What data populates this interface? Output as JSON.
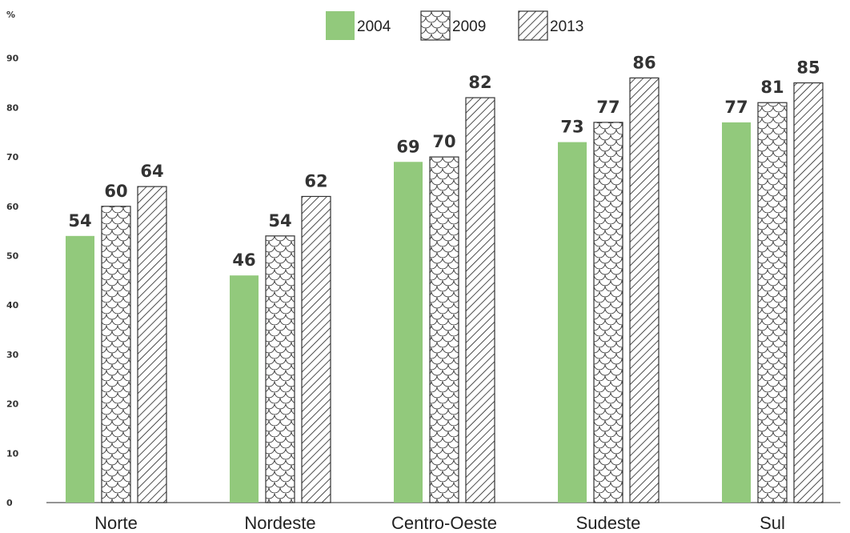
{
  "chart_data": {
    "type": "bar",
    "ylabel": "%",
    "ylim": [
      0,
      100
    ],
    "yticks": [
      0,
      10,
      20,
      30,
      40,
      50,
      60,
      70,
      80,
      90
    ],
    "grid": false,
    "legend_position": "top-center",
    "categories": [
      "Norte",
      "Nordeste",
      "Centro-Oeste",
      "Sudeste",
      "Sul"
    ],
    "series": [
      {
        "name": "2004",
        "fill": "solid",
        "color": "#92c97c",
        "values": [
          54,
          46,
          69,
          73,
          77
        ]
      },
      {
        "name": "2009",
        "fill": "scale-pattern",
        "color": "#ffffff",
        "values": [
          60,
          54,
          70,
          77,
          81
        ]
      },
      {
        "name": "2013",
        "fill": "diagonal-hatch",
        "color": "#ffffff",
        "values": [
          64,
          62,
          82,
          86,
          85
        ]
      }
    ],
    "data_labels": [
      [
        "54",
        "46",
        "69",
        "73",
        "77"
      ],
      [
        "60",
        "54",
        "70",
        "77",
        "81"
      ],
      [
        "64",
        "62",
        "82",
        "86",
        "85"
      ]
    ]
  }
}
